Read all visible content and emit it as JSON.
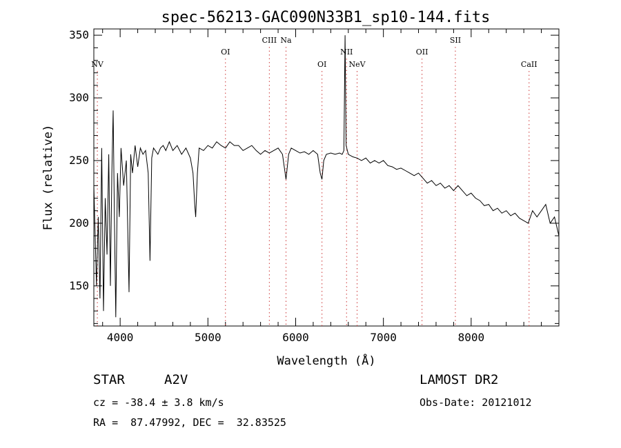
{
  "chart_data": {
    "type": "line",
    "title": "spec-56213-GAC090N33B1_sp10-144.fits",
    "xlabel": "Wavelength (Å)",
    "ylabel": "Flux (relative)",
    "xlim": [
      3700,
      9000
    ],
    "ylim": [
      118,
      355
    ],
    "x_ticks": [
      4000,
      5000,
      6000,
      7000,
      8000
    ],
    "y_ticks": [
      150,
      200,
      250,
      300,
      350
    ],
    "grid": false,
    "series": [
      {
        "x": [
          3700,
          3730,
          3750,
          3770,
          3790,
          3810,
          3830,
          3850,
          3870,
          3889,
          3905,
          3920,
          3935,
          3950,
          3970,
          3990,
          4010,
          4040,
          4070,
          4101,
          4120,
          4140,
          4170,
          4200,
          4230,
          4260,
          4290,
          4320,
          4340,
          4360,
          4380,
          4400,
          4430,
          4460,
          4490,
          4520,
          4560,
          4600,
          4650,
          4700,
          4750,
          4800,
          4830,
          4850,
          4861,
          4880,
          4900,
          4950,
          5000,
          5050,
          5100,
          5150,
          5200,
          5250,
          5300,
          5350,
          5400,
          5450,
          5500,
          5550,
          5600,
          5650,
          5700,
          5750,
          5800,
          5850,
          5890,
          5920,
          5950,
          6000,
          6050,
          6100,
          6150,
          6200,
          6250,
          6280,
          6300,
          6320,
          6350,
          6400,
          6450,
          6500,
          6530,
          6550,
          6563,
          6575,
          6600,
          6650,
          6700,
          6750,
          6800,
          6850,
          6900,
          6950,
          7000,
          7050,
          7100,
          7150,
          7200,
          7250,
          7300,
          7350,
          7400,
          7450,
          7500,
          7550,
          7600,
          7650,
          7700,
          7750,
          7800,
          7850,
          7900,
          7950,
          8000,
          8050,
          8100,
          8150,
          8200,
          8250,
          8300,
          8350,
          8400,
          8450,
          8500,
          8550,
          8600,
          8650,
          8700,
          8750,
          8800,
          8850,
          8900,
          8950,
          9000
        ],
        "y": [
          230,
          150,
          205,
          140,
          260,
          130,
          220,
          175,
          255,
          150,
          240,
          290,
          200,
          125,
          240,
          205,
          260,
          230,
          250,
          145,
          255,
          240,
          262,
          245,
          260,
          255,
          258,
          240,
          170,
          252,
          260,
          258,
          255,
          260,
          262,
          258,
          265,
          258,
          262,
          255,
          260,
          252,
          240,
          215,
          205,
          240,
          260,
          258,
          262,
          260,
          265,
          262,
          260,
          265,
          262,
          262,
          258,
          260,
          262,
          258,
          255,
          258,
          256,
          258,
          260,
          255,
          235,
          255,
          260,
          258,
          256,
          257,
          255,
          258,
          255,
          240,
          235,
          250,
          255,
          256,
          255,
          256,
          255,
          258,
          350,
          262,
          255,
          253,
          252,
          250,
          252,
          248,
          250,
          248,
          250,
          246,
          245,
          243,
          244,
          242,
          240,
          238,
          240,
          236,
          232,
          234,
          230,
          232,
          228,
          230,
          226,
          230,
          226,
          222,
          224,
          220,
          218,
          214,
          215,
          210,
          212,
          208,
          210,
          206,
          208,
          204,
          202,
          200,
          210,
          205,
          210,
          215,
          200,
          205,
          190
        ]
      }
    ],
    "line_markers": [
      {
        "label": "NV",
        "x": 3740,
        "row": 3
      },
      {
        "label": "OI",
        "x": 5200,
        "row": 2
      },
      {
        "label": "CIII",
        "x": 5700,
        "row": 1
      },
      {
        "label": "Na",
        "x": 5890,
        "row": 1
      },
      {
        "label": "OI",
        "x": 6300,
        "row": 3
      },
      {
        "label": "NII",
        "x": 6580,
        "row": 2
      },
      {
        "label": "NeV",
        "x": 6700,
        "row": 3
      },
      {
        "label": "OII",
        "x": 7440,
        "row": 2
      },
      {
        "label": "SII",
        "x": 7820,
        "row": 1
      },
      {
        "label": "CaII",
        "x": 8660,
        "row": 3
      }
    ]
  },
  "info": {
    "class_label": "STAR",
    "subclass": "A2V",
    "survey": "LAMOST DR2",
    "cz": "cz = -38.4 ± 3.8 km/s",
    "obs_date": "Obs-Date: 20121012",
    "coords": "RA =  87.47992, DEC =  32.83525"
  }
}
